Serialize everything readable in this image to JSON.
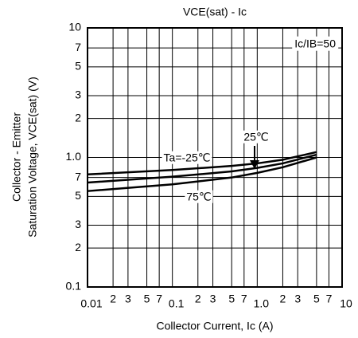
{
  "chart_data": {
    "type": "line",
    "title": "VCE(sat) - Ic",
    "annotation": "Ic/IB=50",
    "x_label": "Collector Current, Ic (A)",
    "y_label": [
      "Collector - Emitter",
      "Saturation Voltage, VCE(sat) (V)"
    ],
    "x_scale": "log",
    "y_scale": "log",
    "grid": true,
    "xlim": [
      0.01,
      10
    ],
    "ylim": [
      0.1,
      10
    ],
    "xticks": [
      0.01,
      {
        "value": 0.02,
        "label": "2"
      },
      {
        "value": 0.03,
        "label": "3"
      },
      {
        "value": 0.05,
        "label": "5"
      },
      {
        "value": 0.07,
        "label": "7"
      },
      0.1,
      {
        "value": 0.2,
        "label": "2"
      },
      {
        "value": 0.3,
        "label": "3"
      },
      {
        "value": 0.5,
        "label": "5"
      },
      {
        "value": 0.7,
        "label": "7"
      },
      {
        "value": 1,
        "label": "1.0"
      },
      {
        "value": 2,
        "label": "2"
      },
      {
        "value": 3,
        "label": "3"
      },
      {
        "value": 5,
        "label": "5"
      },
      {
        "value": 7,
        "label": "7"
      },
      10
    ],
    "yticks": [
      0.1,
      {
        "value": 0.2,
        "label": "2"
      },
      {
        "value": 0.3,
        "label": "3"
      },
      {
        "value": 0.5,
        "label": "5"
      },
      {
        "value": 0.7,
        "label": "7"
      },
      {
        "value": 1,
        "label": "1.0"
      },
      {
        "value": 2,
        "label": "2"
      },
      {
        "value": 3,
        "label": "3"
      },
      {
        "value": 5,
        "label": "5"
      },
      {
        "value": 7,
        "label": "7"
      },
      10
    ],
    "x": [
      0.01,
      0.1,
      0.5,
      1,
      2,
      5
    ],
    "series": [
      {
        "name": "Ta=-25℃",
        "color": "#000000",
        "values": [
          0.74,
          0.8,
          0.86,
          0.9,
          0.96,
          1.1
        ]
      },
      {
        "name": "25℃",
        "color": "#000000",
        "values": [
          0.64,
          0.71,
          0.78,
          0.83,
          0.9,
          1.05
        ]
      },
      {
        "name": "75℃",
        "color": "#000000",
        "values": [
          0.55,
          0.62,
          0.7,
          0.76,
          0.84,
          1.0
        ]
      }
    ]
  }
}
